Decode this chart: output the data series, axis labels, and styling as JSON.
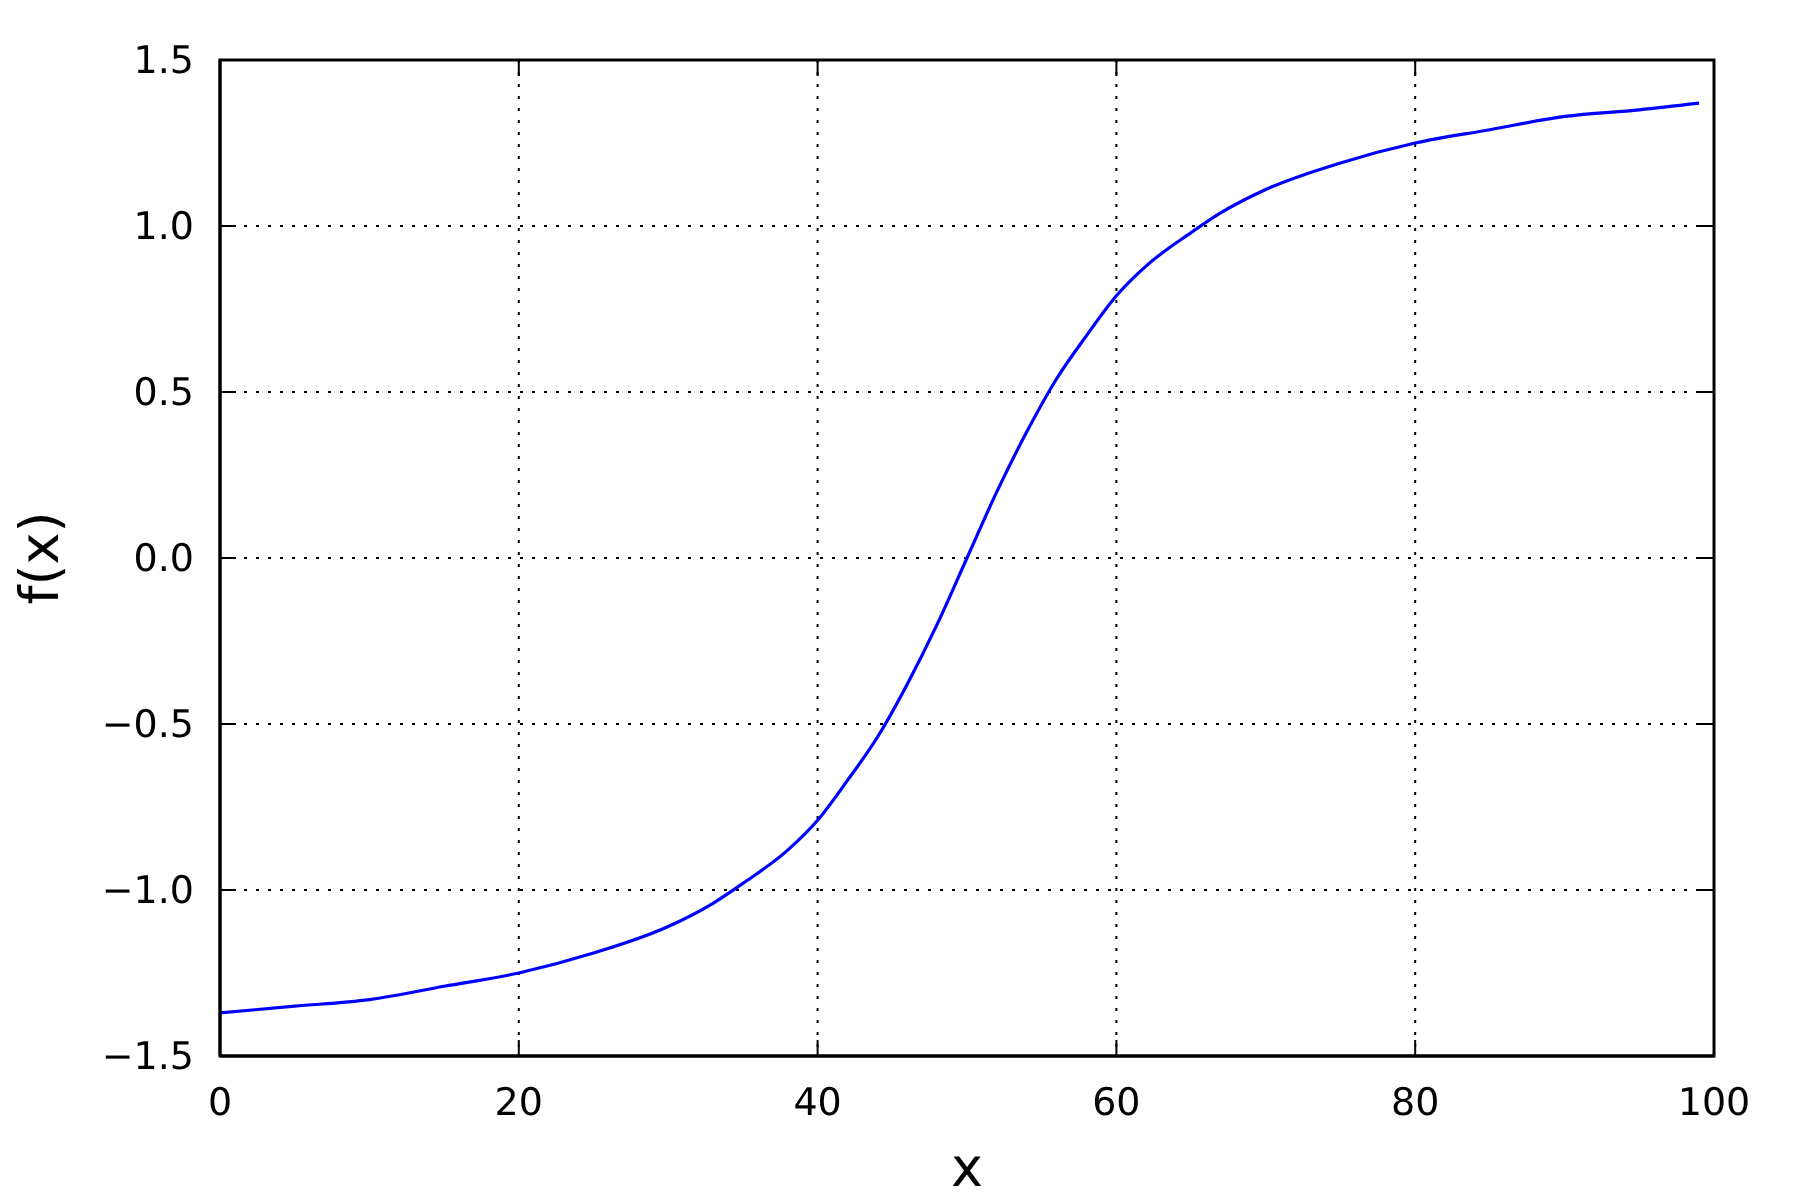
{
  "chart_data": {
    "type": "line",
    "xlabel": "x",
    "ylabel": "f(x)",
    "x": [
      0,
      5,
      10,
      15,
      20,
      25,
      30,
      33,
      35,
      38,
      40,
      42,
      44,
      46,
      48,
      50,
      52,
      54,
      56,
      58,
      60,
      62,
      65,
      67,
      70,
      75,
      80,
      85,
      90,
      95,
      99
    ],
    "series": [
      {
        "color": "#0000ff",
        "values": [
          -1.37,
          -1.35,
          -1.33,
          -1.29,
          -1.25,
          -1.19,
          -1.11,
          -1.04,
          -0.98,
          -0.88,
          -0.79,
          -0.67,
          -0.54,
          -0.38,
          -0.2,
          0,
          0.2,
          0.38,
          0.54,
          0.67,
          0.79,
          0.88,
          0.98,
          1.04,
          1.11,
          1.19,
          1.25,
          1.29,
          1.33,
          1.35,
          1.37
        ]
      }
    ],
    "xlim": [
      0,
      100
    ],
    "xticks": [
      0,
      20,
      40,
      60,
      80,
      100
    ],
    "ylim": [
      -1.5,
      1.5
    ],
    "yticks": [
      {
        "value": -1.5,
        "label": "−1.5"
      },
      {
        "value": -1,
        "label": "−1.0"
      },
      {
        "value": -0.5,
        "label": "−0.5"
      },
      {
        "value": 0,
        "label": "0.0"
      },
      0.5,
      {
        "value": 1,
        "label": "1.0"
      },
      1.5
    ],
    "grid": true
  }
}
